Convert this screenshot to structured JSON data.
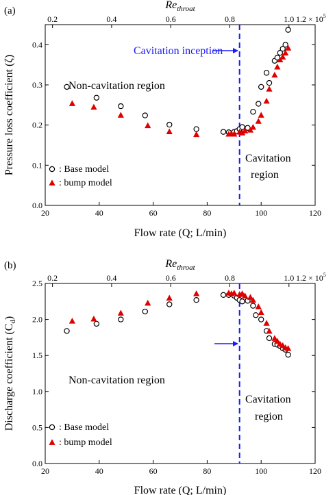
{
  "colors": {
    "base_marker": "#000000",
    "bump_marker": "#e00000",
    "inception_line": "#1a1aff",
    "axis": "#000000"
  },
  "chart_data": [
    {
      "panel_label": "(a)",
      "type": "scatter",
      "xlabel": "Flow rate (Q; L/min)",
      "ylabel": "Pressure loss coefficient (ζ)",
      "top_xlabel_main": "Re",
      "top_xlabel_sub": "throat",
      "top_scale_label": "× 10",
      "top_scale_exp": "5",
      "xlim": [
        20,
        120
      ],
      "ylim": [
        0.0,
        0.45
      ],
      "xticks": [
        "20",
        "40",
        "60",
        "80",
        "100",
        "120"
      ],
      "yticks": [
        "0.0",
        "0.1",
        "0.2",
        "0.3",
        "0.4"
      ],
      "top_ticks": [
        {
          "x": 22.7,
          "label": "0.2"
        },
        {
          "x": 44.6,
          "label": "0.4"
        },
        {
          "x": 66.5,
          "label": "0.6"
        },
        {
          "x": 88.4,
          "label": "0.8"
        },
        {
          "x": 110.3,
          "label": "1.0"
        },
        {
          "x": 132.2,
          "label": "1.2"
        }
      ],
      "inception_x": 92,
      "annotations": {
        "inception": "Cavitation inception",
        "non_cav": "Non-cavitation region",
        "cav_line1": "Cavitation",
        "cav_line2": "region"
      },
      "legend": [
        {
          "marker": "circle",
          "label": ": Base model"
        },
        {
          "marker": "triangle",
          "label": ": bump model"
        }
      ],
      "series": [
        {
          "name": "Base model",
          "marker": "circle",
          "x": [
            28,
            39,
            48,
            57,
            66,
            76,
            86,
            88,
            90,
            91,
            92,
            93,
            95,
            97,
            99,
            100,
            102,
            103,
            105,
            106,
            107,
            108,
            109,
            110
          ],
          "y": [
            0.295,
            0.268,
            0.247,
            0.224,
            0.201,
            0.19,
            0.183,
            0.182,
            0.183,
            0.185,
            0.19,
            0.195,
            0.193,
            0.233,
            0.253,
            0.295,
            0.33,
            0.305,
            0.36,
            0.368,
            0.38,
            0.39,
            0.4,
            0.437
          ]
        },
        {
          "name": "bump model",
          "marker": "triangle",
          "x": [
            30,
            38,
            48,
            58,
            66,
            76,
            88,
            89,
            90,
            92,
            93,
            94,
            96,
            97,
            99,
            100,
            102,
            103,
            105,
            106,
            107,
            108,
            109,
            110
          ],
          "y": [
            0.254,
            0.245,
            0.225,
            0.199,
            0.184,
            0.177,
            0.178,
            0.179,
            0.178,
            0.183,
            0.181,
            0.186,
            0.188,
            0.195,
            0.21,
            0.225,
            0.26,
            0.29,
            0.325,
            0.345,
            0.363,
            0.37,
            0.38,
            0.392
          ]
        }
      ]
    },
    {
      "panel_label": "(b)",
      "type": "scatter",
      "xlabel": "Flow rate (Q; L/min)",
      "ylabel": "Discharge coefficient (C",
      "ylabel_sub": "d",
      "ylabel_close": ")",
      "top_xlabel_main": "Re",
      "top_xlabel_sub": "throat",
      "top_scale_label": "× 10",
      "top_scale_exp": "5",
      "xlim": [
        20,
        120
      ],
      "ylim": [
        0.0,
        2.5
      ],
      "xticks": [
        "20",
        "40",
        "60",
        "80",
        "100",
        "120"
      ],
      "yticks": [
        "0.0",
        "0.5",
        "1.0",
        "1.5",
        "2.0",
        "2.5"
      ],
      "top_ticks": [
        {
          "x": 22.7,
          "label": "0.2"
        },
        {
          "x": 44.6,
          "label": "0.4"
        },
        {
          "x": 66.5,
          "label": "0.6"
        },
        {
          "x": 88.4,
          "label": "0.8"
        },
        {
          "x": 110.3,
          "label": "1.0"
        },
        {
          "x": 132.2,
          "label": "1.2"
        }
      ],
      "inception_x": 92,
      "annotations": {
        "non_cav": "Non-cavitation region",
        "cav_line1": "Cavitation",
        "cav_line2": "region"
      },
      "legend": [
        {
          "marker": "circle",
          "label": ": Base model"
        },
        {
          "marker": "triangle",
          "label": ": bump model"
        }
      ],
      "series": [
        {
          "name": "Base model",
          "marker": "circle",
          "x": [
            28,
            39,
            48,
            57,
            66,
            76,
            86,
            88,
            90,
            91,
            92,
            93,
            95,
            97,
            98,
            100,
            102,
            103,
            105,
            106,
            107,
            108,
            109,
            110
          ],
          "y": [
            1.84,
            1.94,
            2.0,
            2.11,
            2.21,
            2.27,
            2.34,
            2.34,
            2.33,
            2.3,
            2.27,
            2.25,
            2.26,
            2.19,
            2.06,
            2.0,
            1.84,
            1.74,
            1.66,
            1.65,
            1.63,
            1.6,
            1.58,
            1.51
          ]
        },
        {
          "name": "bump model",
          "marker": "triangle",
          "x": [
            30,
            38,
            48,
            58,
            66,
            76,
            88,
            89,
            90,
            92,
            93,
            94,
            96,
            97,
            99,
            100,
            102,
            103,
            105,
            106,
            107,
            108,
            109,
            110
          ],
          "y": [
            1.98,
            2.01,
            2.09,
            2.23,
            2.3,
            2.36,
            2.37,
            2.36,
            2.37,
            2.35,
            2.36,
            2.33,
            2.31,
            2.27,
            2.18,
            2.1,
            1.95,
            1.84,
            1.74,
            1.7,
            1.66,
            1.64,
            1.61,
            1.6
          ]
        }
      ]
    }
  ]
}
